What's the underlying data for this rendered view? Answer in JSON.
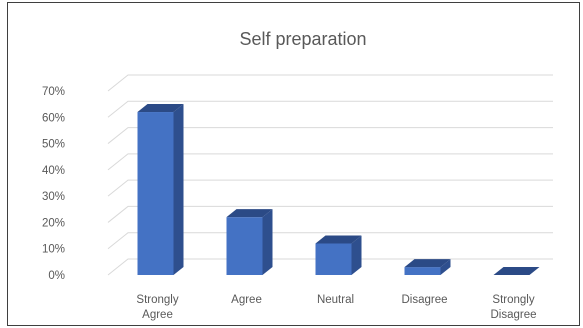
{
  "chart_data": {
    "type": "bar",
    "title": "Self preparation",
    "xlabel": "",
    "ylabel": "",
    "categories": [
      [
        "Strongly",
        "Agree"
      ],
      [
        "Agree"
      ],
      [
        "Neutral"
      ],
      [
        "Disagree"
      ],
      [
        "Strongly",
        "Disagree"
      ]
    ],
    "values": [
      62,
      22,
      12,
      3,
      0
    ],
    "ylim": [
      0,
      70
    ],
    "yticks": [
      "0%",
      "10%",
      "20%",
      "30%",
      "40%",
      "50%",
      "60%",
      "70%"
    ],
    "value_format": "percent",
    "grid": true,
    "legend": "none",
    "style": "3d-column",
    "colors": {
      "front": "#4472c4",
      "side": "#2e4f8e",
      "top": "#2b4a86",
      "grid": "#d9d9d9",
      "text": "#595959",
      "border": "#3f3f3f"
    }
  }
}
